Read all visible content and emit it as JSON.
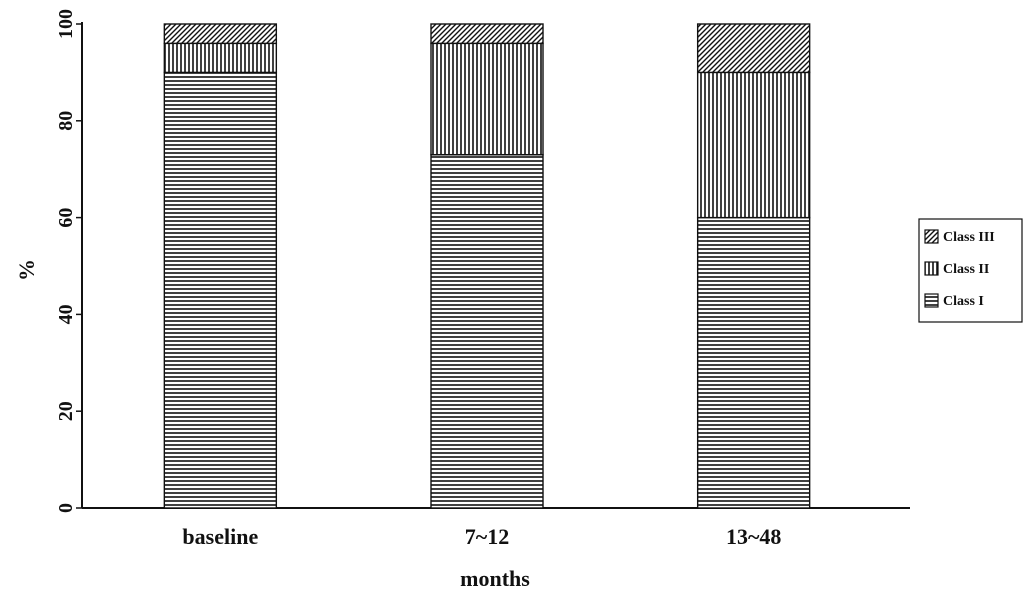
{
  "chart_data": {
    "type": "bar",
    "stacked": true,
    "categories": [
      "baseline",
      "7~12",
      "13~48"
    ],
    "series": [
      {
        "name": "Class I",
        "values": [
          90,
          73,
          60
        ],
        "pattern": "horizontal"
      },
      {
        "name": "Class II",
        "values": [
          6,
          23,
          30
        ],
        "pattern": "vertical"
      },
      {
        "name": "Class III",
        "values": [
          4,
          4,
          10
        ],
        "pattern": "diagonal"
      }
    ],
    "title": "",
    "xlabel": "months",
    "ylabel": "%",
    "ylim": [
      0,
      100
    ],
    "yticks": [
      0,
      20,
      40,
      60,
      80,
      100
    ],
    "grid": false,
    "legend_position": "right",
    "colors": {
      "ink": "#111111",
      "background": "#ffffff"
    }
  }
}
